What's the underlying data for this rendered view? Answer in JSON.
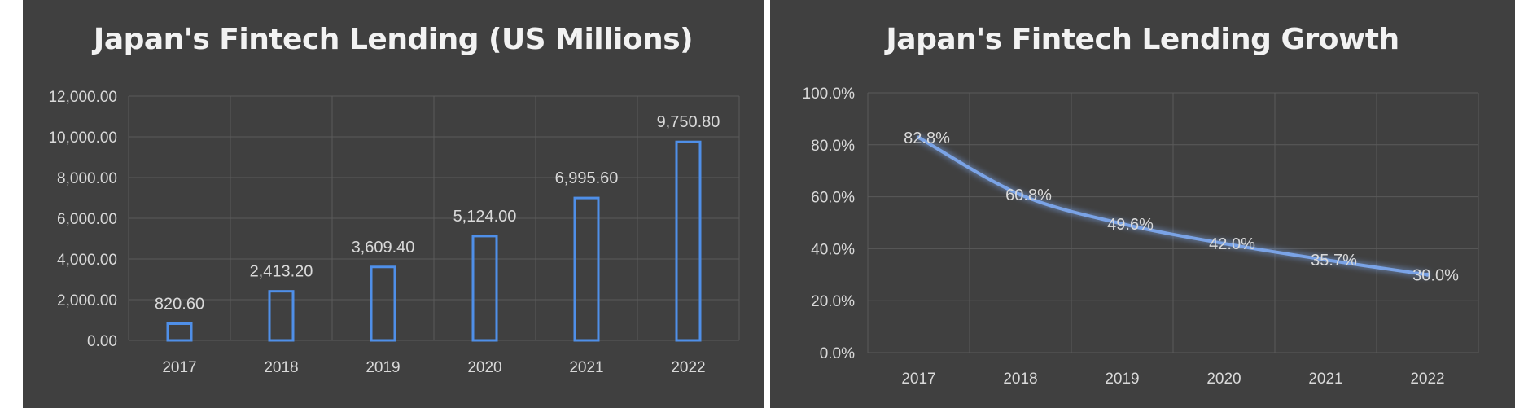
{
  "colors": {
    "background": "#404040",
    "bar_outline": "#4f8fe8",
    "line": "#7aa3e6",
    "text": "#d9d9d9"
  },
  "chart_data": [
    {
      "type": "bar",
      "title": "Japan's Fintech Lending (US Millions)",
      "categories": [
        "2017",
        "2018",
        "2019",
        "2020",
        "2021",
        "2022"
      ],
      "values": [
        820.6,
        2413.2,
        3609.4,
        5124.0,
        6995.6,
        9750.8
      ],
      "value_labels": [
        "820.60",
        "2,413.20",
        "3,609.40",
        "5,124.00",
        "6,995.60",
        "9,750.80"
      ],
      "ylim": [
        0,
        12000
      ],
      "yticks": [
        "0.00",
        "2,000.00",
        "4,000.00",
        "6,000.00",
        "8,000.00",
        "10,000.00",
        "12,000.00"
      ],
      "grid": true,
      "legend": "none"
    },
    {
      "type": "line",
      "title": "Japan's Fintech Lending Growth",
      "categories": [
        "2017",
        "2018",
        "2019",
        "2020",
        "2021",
        "2022"
      ],
      "values": [
        82.8,
        60.8,
        49.6,
        42.0,
        35.7,
        30.0
      ],
      "value_labels": [
        "82.8%",
        "60.8%",
        "49.6%",
        "42.0%",
        "35.7%",
        "30.0%"
      ],
      "ylim": [
        0,
        100
      ],
      "yticks": [
        "0.0%",
        "20.0%",
        "40.0%",
        "60.0%",
        "80.0%",
        "100.0%"
      ],
      "grid": true,
      "legend": "none"
    }
  ]
}
